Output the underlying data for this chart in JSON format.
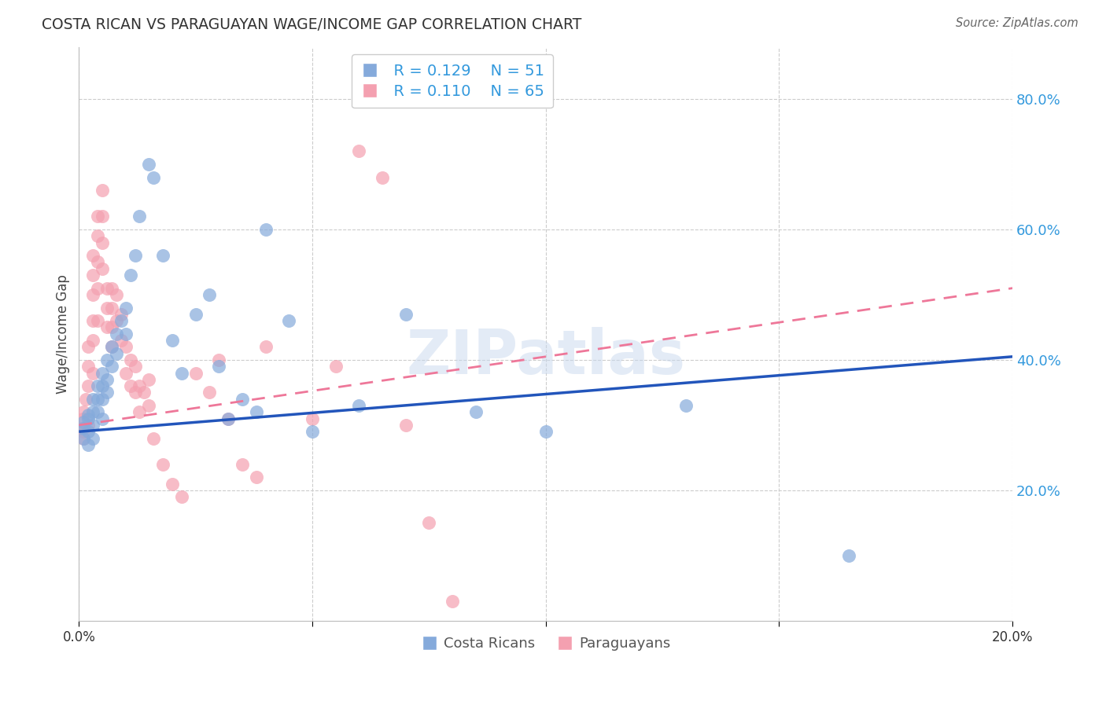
{
  "title": "COSTA RICAN VS PARAGUAYAN WAGE/INCOME GAP CORRELATION CHART",
  "source": "Source: ZipAtlas.com",
  "ylabel": "Wage/Income Gap",
  "xlabel": "",
  "xlim": [
    0.0,
    0.2
  ],
  "ylim": [
    0.0,
    0.88
  ],
  "blue_color": "#85AADB",
  "pink_color": "#F4A0B0",
  "trend_blue": "#2255BB",
  "trend_pink": "#EE7799",
  "legend_r1": "R = 0.129",
  "legend_n1": "N = 51",
  "legend_r2": "R = 0.110",
  "legend_n2": "N = 65",
  "watermark": "ZIPatlas",
  "costa_ricans_x": [
    0.001,
    0.001,
    0.001,
    0.002,
    0.002,
    0.002,
    0.002,
    0.003,
    0.003,
    0.003,
    0.003,
    0.004,
    0.004,
    0.004,
    0.005,
    0.005,
    0.005,
    0.005,
    0.006,
    0.006,
    0.006,
    0.007,
    0.007,
    0.008,
    0.008,
    0.009,
    0.01,
    0.01,
    0.011,
    0.012,
    0.013,
    0.015,
    0.016,
    0.018,
    0.02,
    0.022,
    0.025,
    0.028,
    0.03,
    0.032,
    0.035,
    0.038,
    0.04,
    0.045,
    0.05,
    0.06,
    0.07,
    0.085,
    0.1,
    0.13,
    0.165
  ],
  "costa_ricans_y": [
    0.295,
    0.305,
    0.28,
    0.31,
    0.29,
    0.315,
    0.27,
    0.34,
    0.32,
    0.3,
    0.28,
    0.36,
    0.34,
    0.32,
    0.38,
    0.36,
    0.34,
    0.31,
    0.4,
    0.37,
    0.35,
    0.42,
    0.39,
    0.44,
    0.41,
    0.46,
    0.48,
    0.44,
    0.53,
    0.56,
    0.62,
    0.7,
    0.68,
    0.56,
    0.43,
    0.38,
    0.47,
    0.5,
    0.39,
    0.31,
    0.34,
    0.32,
    0.6,
    0.46,
    0.29,
    0.33,
    0.47,
    0.32,
    0.29,
    0.33,
    0.1
  ],
  "paraguayans_x": [
    0.0005,
    0.0007,
    0.001,
    0.001,
    0.001,
    0.0015,
    0.002,
    0.002,
    0.002,
    0.002,
    0.003,
    0.003,
    0.003,
    0.003,
    0.003,
    0.003,
    0.004,
    0.004,
    0.004,
    0.004,
    0.004,
    0.005,
    0.005,
    0.005,
    0.005,
    0.006,
    0.006,
    0.006,
    0.007,
    0.007,
    0.007,
    0.007,
    0.008,
    0.008,
    0.009,
    0.009,
    0.01,
    0.01,
    0.011,
    0.011,
    0.012,
    0.012,
    0.013,
    0.013,
    0.014,
    0.015,
    0.015,
    0.016,
    0.018,
    0.02,
    0.022,
    0.025,
    0.028,
    0.03,
    0.032,
    0.035,
    0.038,
    0.04,
    0.05,
    0.055,
    0.06,
    0.065,
    0.07,
    0.075,
    0.08
  ],
  "paraguayans_y": [
    0.295,
    0.31,
    0.32,
    0.29,
    0.28,
    0.34,
    0.42,
    0.39,
    0.36,
    0.3,
    0.56,
    0.53,
    0.5,
    0.46,
    0.43,
    0.38,
    0.62,
    0.59,
    0.55,
    0.51,
    0.46,
    0.66,
    0.62,
    0.58,
    0.54,
    0.51,
    0.48,
    0.45,
    0.51,
    0.48,
    0.45,
    0.42,
    0.5,
    0.46,
    0.47,
    0.43,
    0.42,
    0.38,
    0.4,
    0.36,
    0.39,
    0.35,
    0.36,
    0.32,
    0.35,
    0.37,
    0.33,
    0.28,
    0.24,
    0.21,
    0.19,
    0.38,
    0.35,
    0.4,
    0.31,
    0.24,
    0.22,
    0.42,
    0.31,
    0.39,
    0.72,
    0.68,
    0.3,
    0.15,
    0.03
  ]
}
